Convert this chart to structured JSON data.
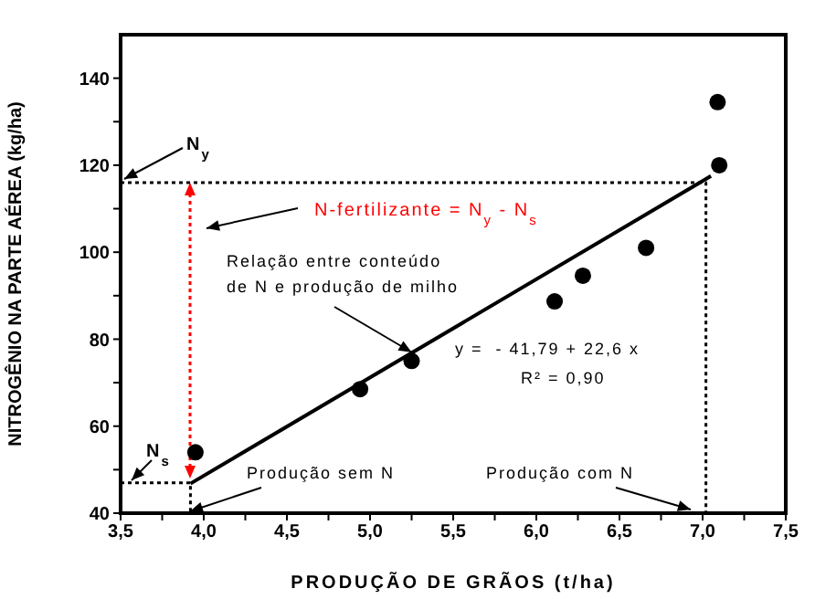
{
  "chart_data": {
    "type": "scatter",
    "xlabel": "PRODUÇÃO DE GRÃOS (t/ha)",
    "ylabel": "NITROGÊNIO NA PARTE AÉREA (kg/ha)",
    "xlim": [
      3.5,
      7.5
    ],
    "ylim": [
      40,
      150
    ],
    "xticks": [
      {
        "value": 3.5,
        "label": "3,5"
      },
      {
        "value": 3.75,
        "label": null
      },
      {
        "value": 4,
        "label": "4,0"
      },
      {
        "value": 4.25,
        "label": null
      },
      {
        "value": 4.5,
        "label": "4,5"
      },
      {
        "value": 4.75,
        "label": null
      },
      {
        "value": 5,
        "label": "5,0"
      },
      {
        "value": 5.25,
        "label": null
      },
      {
        "value": 5.5,
        "label": "5,5"
      },
      {
        "value": 5.75,
        "label": null
      },
      {
        "value": 6,
        "label": "6,0"
      },
      {
        "value": 6.25,
        "label": null
      },
      {
        "value": 6.5,
        "label": "6,5"
      },
      {
        "value": 6.75,
        "label": null
      },
      {
        "value": 7,
        "label": "7,0"
      },
      {
        "value": 7.25,
        "label": null
      },
      {
        "value": 7.5,
        "label": "7,5"
      }
    ],
    "yticks": [
      40,
      {
        "value": 50,
        "label": null
      },
      60,
      {
        "value": 70,
        "label": null
      },
      80,
      {
        "value": 90,
        "label": null
      },
      100,
      {
        "value": 110,
        "label": null
      },
      120,
      {
        "value": 130,
        "label": null
      },
      140
    ],
    "marker": "circle",
    "series": [
      {
        "color": "#000000",
        "x": [
          3.95,
          4.94,
          5.25,
          6.11,
          6.28,
          6.66,
          7.09,
          7.1
        ],
        "values": [
          54,
          68.5,
          75,
          88.7,
          94.6,
          101,
          134.5,
          120
        ]
      },
      {
        "type": "line",
        "color": "#000000",
        "line_style": "solid",
        "marker": "none",
        "x": [
          3.92,
          7.05
        ],
        "values": [
          46.8,
          117.5
        ]
      },
      {
        "type": "line",
        "color": "#000000",
        "line_style": "dotted",
        "marker": "none",
        "x": [
          3.5,
          7.02,
          7.02
        ],
        "values": [
          116,
          116,
          40
        ]
      },
      {
        "type": "line",
        "color": "#000000",
        "line_style": "dotted",
        "marker": "none",
        "x": [
          3.5,
          3.92,
          3.92
        ],
        "values": [
          47,
          47,
          40
        ]
      }
    ],
    "annotations": [
      "N$_{y}$",
      "N-fertilizante = N$_{y}$ - N$_{s}$",
      "Relação entre conteúdo",
      {
        "text": "de N e produção de milho",
        "x": 5.25,
        "y": 77
      },
      "y =  - 41,79 + 22,6 x",
      "R² = 0,90",
      "N$_{s}$",
      "Produção sem N",
      "Produção com N"
    ]
  }
}
